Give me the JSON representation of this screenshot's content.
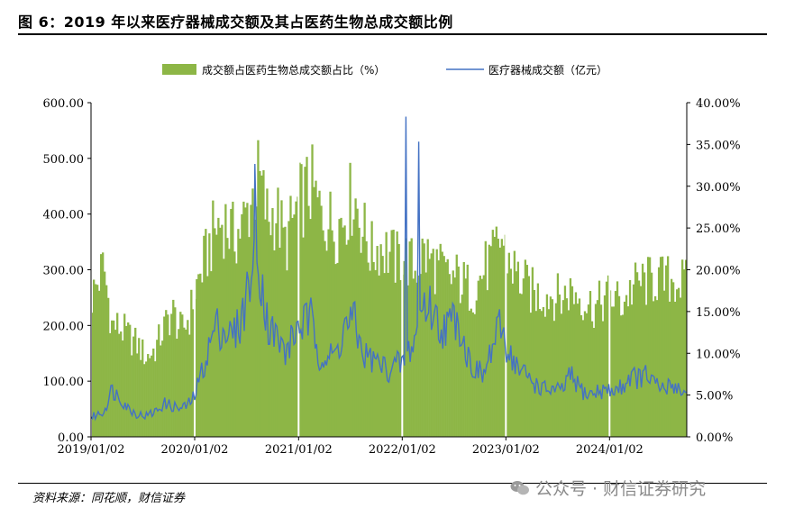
{
  "header": {
    "title": "图 6：2019 年以来医疗器械成交额及其占医药生物总成交额比例"
  },
  "footer": {
    "source": "资料来源：同花顺，财信证券",
    "watermark": "公众号 · 财信证券研究"
  },
  "chart_data": {
    "type": "bar+line",
    "title": "",
    "xlabel": "",
    "ylabel_left": "",
    "ylabel_right": "",
    "legend": [
      {
        "name": "成交额占医药生物总成交额占比（%）",
        "type": "bar",
        "color": "#8DB646",
        "axis": "right"
      },
      {
        "name": "医疗器械成交额（亿元）",
        "type": "line",
        "color": "#4472C4",
        "axis": "left"
      }
    ],
    "legend_position": "top",
    "left_axis": {
      "min": 0,
      "max": 600,
      "ticks": [
        "0.00",
        "100.00",
        "200.00",
        "300.00",
        "400.00",
        "500.00",
        "600.00"
      ]
    },
    "right_axis": {
      "min": 0,
      "max": 40,
      "ticks": [
        "0.00%",
        "5.00%",
        "10.00%",
        "15.00%",
        "20.00%",
        "25.00%",
        "30.00%",
        "35.00%",
        "40.00%"
      ]
    },
    "x_ticks": [
      "2019/01/02",
      "2020/01/02",
      "2021/01/02",
      "2022/01/02",
      "2023/01/02",
      "2024/01/02"
    ],
    "x_range": [
      "2019/01/02",
      "2024/09/30"
    ],
    "series_bar_share_pct": [
      {
        "date": "2019/01/02",
        "value": 16.5
      },
      {
        "date": "2019/02/15",
        "value": 20.5
      },
      {
        "date": "2019/03/15",
        "value": 13.5
      },
      {
        "date": "2019/04/15",
        "value": 13.0
      },
      {
        "date": "2019/05/15",
        "value": 12.0
      },
      {
        "date": "2019/06/15",
        "value": 11.0
      },
      {
        "date": "2019/07/15",
        "value": 9.5
      },
      {
        "date": "2019/08/15",
        "value": 10.5
      },
      {
        "date": "2019/09/15",
        "value": 13.0
      },
      {
        "date": "2019/10/15",
        "value": 15.0
      },
      {
        "date": "2019/11/15",
        "value": 12.5
      },
      {
        "date": "2019/12/15",
        "value": 14.5
      },
      {
        "date": "2020/01/02",
        "value": 17.5
      },
      {
        "date": "2020/02/15",
        "value": 22.0
      },
      {
        "date": "2020/03/15",
        "value": 25.0
      },
      {
        "date": "2020/04/15",
        "value": 26.0
      },
      {
        "date": "2020/05/15",
        "value": 24.0
      },
      {
        "date": "2020/06/15",
        "value": 25.0
      },
      {
        "date": "2020/07/15",
        "value": 28.0
      },
      {
        "date": "2020/08/15",
        "value": 31.0
      },
      {
        "date": "2020/09/15",
        "value": 26.0
      },
      {
        "date": "2020/10/15",
        "value": 27.0
      },
      {
        "date": "2020/11/15",
        "value": 23.0
      },
      {
        "date": "2020/12/15",
        "value": 26.0
      },
      {
        "date": "2021/01/02",
        "value": 28.0
      },
      {
        "date": "2021/02/15",
        "value": 30.0
      },
      {
        "date": "2021/03/15",
        "value": 27.0
      },
      {
        "date": "2021/04/15",
        "value": 26.0
      },
      {
        "date": "2021/05/15",
        "value": 25.0
      },
      {
        "date": "2021/06/15",
        "value": 27.0
      },
      {
        "date": "2021/07/15",
        "value": 29.0
      },
      {
        "date": "2021/08/15",
        "value": 25.0
      },
      {
        "date": "2021/09/15",
        "value": 22.0
      },
      {
        "date": "2021/10/15",
        "value": 23.0
      },
      {
        "date": "2021/11/15",
        "value": 22.0
      },
      {
        "date": "2021/12/15",
        "value": 21.0
      },
      {
        "date": "2022/01/02",
        "value": 22.0
      },
      {
        "date": "2022/02/15",
        "value": 20.0
      },
      {
        "date": "2022/03/15",
        "value": 22.0
      },
      {
        "date": "2022/04/15",
        "value": 21.0
      },
      {
        "date": "2022/05/15",
        "value": 20.0
      },
      {
        "date": "2022/06/15",
        "value": 19.0
      },
      {
        "date": "2022/07/15",
        "value": 19.0
      },
      {
        "date": "2022/08/15",
        "value": 18.0
      },
      {
        "date": "2022/09/15",
        "value": 17.5
      },
      {
        "date": "2022/10/15",
        "value": 20.0
      },
      {
        "date": "2022/11/15",
        "value": 21.0
      },
      {
        "date": "2022/12/15",
        "value": 24.0
      },
      {
        "date": "2023/01/02",
        "value": 22.0
      },
      {
        "date": "2023/02/15",
        "value": 19.0
      },
      {
        "date": "2023/03/15",
        "value": 18.0
      },
      {
        "date": "2023/04/15",
        "value": 17.0
      },
      {
        "date": "2023/05/15",
        "value": 17.0
      },
      {
        "date": "2023/06/15",
        "value": 17.0
      },
      {
        "date": "2023/07/15",
        "value": 16.5
      },
      {
        "date": "2023/08/15",
        "value": 17.5
      },
      {
        "date": "2023/09/15",
        "value": 17.0
      },
      {
        "date": "2023/10/15",
        "value": 16.0
      },
      {
        "date": "2023/11/15",
        "value": 15.5
      },
      {
        "date": "2023/12/15",
        "value": 16.5
      },
      {
        "date": "2024/01/02",
        "value": 17.0
      },
      {
        "date": "2024/02/15",
        "value": 16.0
      },
      {
        "date": "2024/03/15",
        "value": 17.5
      },
      {
        "date": "2024/04/15",
        "value": 18.5
      },
      {
        "date": "2024/05/15",
        "value": 18.5
      },
      {
        "date": "2024/06/15",
        "value": 19.0
      },
      {
        "date": "2024/07/15",
        "value": 18.5
      },
      {
        "date": "2024/08/15",
        "value": 19.0
      },
      {
        "date": "2024/09/30",
        "value": 18.0
      }
    ],
    "series_line_turnover": [
      {
        "date": "2019/01/02",
        "value": 35
      },
      {
        "date": "2019/02/15",
        "value": 45
      },
      {
        "date": "2019/03/15",
        "value": 85
      },
      {
        "date": "2019/04/15",
        "value": 70
      },
      {
        "date": "2019/05/15",
        "value": 50
      },
      {
        "date": "2019/06/15",
        "value": 40
      },
      {
        "date": "2019/07/15",
        "value": 38
      },
      {
        "date": "2019/08/15",
        "value": 45
      },
      {
        "date": "2019/09/15",
        "value": 60
      },
      {
        "date": "2019/10/15",
        "value": 55
      },
      {
        "date": "2019/11/15",
        "value": 50
      },
      {
        "date": "2019/12/15",
        "value": 60
      },
      {
        "date": "2020/01/02",
        "value": 75
      },
      {
        "date": "2020/02/15",
        "value": 150
      },
      {
        "date": "2020/03/15",
        "value": 200
      },
      {
        "date": "2020/04/15",
        "value": 190
      },
      {
        "date": "2020/05/15",
        "value": 180
      },
      {
        "date": "2020/06/15",
        "value": 210
      },
      {
        "date": "2020/07/15",
        "value": 290
      },
      {
        "date": "2020/08/15",
        "value": 320
      },
      {
        "date": "2020/09/15",
        "value": 200
      },
      {
        "date": "2020/10/15",
        "value": 180
      },
      {
        "date": "2020/11/15",
        "value": 150
      },
      {
        "date": "2020/12/15",
        "value": 180
      },
      {
        "date": "2021/01/02",
        "value": 200
      },
      {
        "date": "2021/02/15",
        "value": 210
      },
      {
        "date": "2021/03/15",
        "value": 150
      },
      {
        "date": "2021/04/15",
        "value": 140
      },
      {
        "date": "2021/05/15",
        "value": 150
      },
      {
        "date": "2021/06/15",
        "value": 200
      },
      {
        "date": "2021/07/15",
        "value": 210
      },
      {
        "date": "2021/08/15",
        "value": 150
      },
      {
        "date": "2021/09/15",
        "value": 140
      },
      {
        "date": "2021/10/15",
        "value": 130
      },
      {
        "date": "2021/11/15",
        "value": 120
      },
      {
        "date": "2021/12/15",
        "value": 130
      },
      {
        "date": "2022/01/02",
        "value": 130
      },
      {
        "date": "2022/02/15",
        "value": 175
      },
      {
        "date": "2022/03/15",
        "value": 240
      },
      {
        "date": "2022/04/15",
        "value": 230
      },
      {
        "date": "2022/05/15",
        "value": 195
      },
      {
        "date": "2022/06/15",
        "value": 200
      },
      {
        "date": "2022/07/15",
        "value": 220
      },
      {
        "date": "2022/08/15",
        "value": 150
      },
      {
        "date": "2022/09/15",
        "value": 120
      },
      {
        "date": "2022/10/15",
        "value": 110
      },
      {
        "date": "2022/11/15",
        "value": 160
      },
      {
        "date": "2022/12/15",
        "value": 200
      },
      {
        "date": "2023/01/02",
        "value": 165
      },
      {
        "date": "2023/02/15",
        "value": 120
      },
      {
        "date": "2023/03/15",
        "value": 110
      },
      {
        "date": "2023/04/15",
        "value": 95
      },
      {
        "date": "2023/05/15",
        "value": 85
      },
      {
        "date": "2023/06/15",
        "value": 85
      },
      {
        "date": "2023/07/15",
        "value": 80
      },
      {
        "date": "2023/08/15",
        "value": 110
      },
      {
        "date": "2023/09/15",
        "value": 90
      },
      {
        "date": "2023/10/15",
        "value": 75
      },
      {
        "date": "2023/11/15",
        "value": 80
      },
      {
        "date": "2023/12/15",
        "value": 85
      },
      {
        "date": "2024/01/02",
        "value": 80
      },
      {
        "date": "2024/02/15",
        "value": 90
      },
      {
        "date": "2024/03/15",
        "value": 110
      },
      {
        "date": "2024/04/15",
        "value": 105
      },
      {
        "date": "2024/05/15",
        "value": 110
      },
      {
        "date": "2024/06/15",
        "value": 90
      },
      {
        "date": "2024/07/15",
        "value": 85
      },
      {
        "date": "2024/08/15",
        "value": 95
      },
      {
        "date": "2024/09/30",
        "value": 75
      }
    ],
    "annotations": [
      {
        "date": "2022/01/15",
        "value": 575,
        "label": ""
      },
      {
        "date": "2020/08/01",
        "value": 490,
        "label": ""
      },
      {
        "date": "2022/03/01",
        "value": 530,
        "label": ""
      }
    ]
  }
}
